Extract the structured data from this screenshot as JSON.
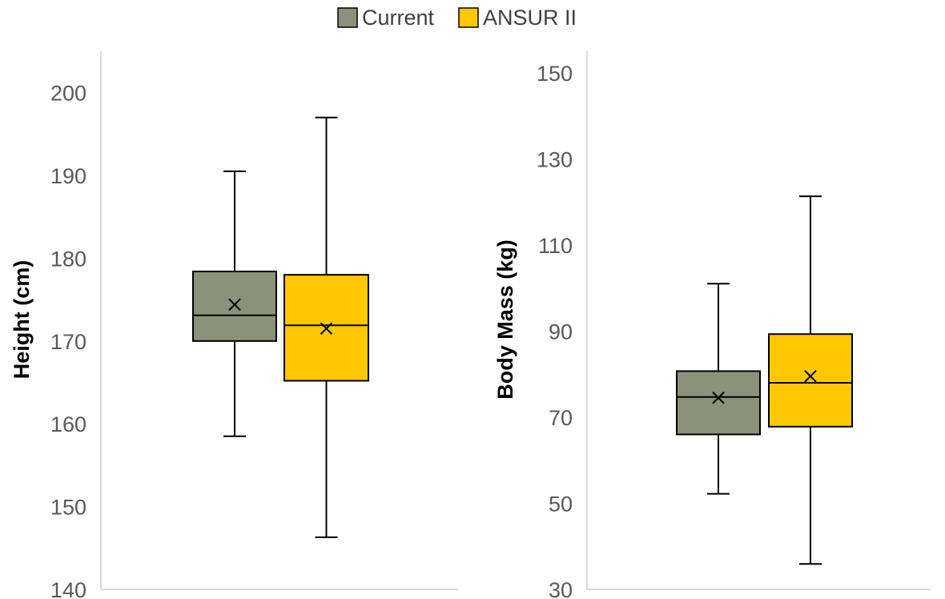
{
  "legend": [
    {
      "label": "Current",
      "color": "#8b917a"
    },
    {
      "label": "ANSUR II",
      "color": "#ffc800"
    }
  ],
  "chart_data": [
    {
      "type": "boxplot",
      "title": "",
      "xlabel": "",
      "ylabel": "Height (cm)",
      "ylim": [
        140,
        205
      ],
      "yticks": [
        140,
        150,
        160,
        170,
        180,
        190,
        200
      ],
      "grid": false,
      "legend_position": "top-center",
      "series": [
        {
          "name": "Current",
          "color": "#8b917a",
          "min": 158.5,
          "q1": 170.0,
          "median": 173.1,
          "q3": 178.4,
          "max": 190.5,
          "mean": 174.4
        },
        {
          "name": "ANSUR II",
          "color": "#ffc800",
          "min": 146.3,
          "q1": 165.2,
          "median": 171.9,
          "q3": 178.0,
          "max": 197.0,
          "mean": 171.5
        }
      ]
    },
    {
      "type": "boxplot",
      "title": "",
      "xlabel": "",
      "ylabel": "Body Mass (kg)",
      "ylim": [
        30,
        155
      ],
      "yticks": [
        30,
        50,
        70,
        90,
        110,
        130,
        150
      ],
      "grid": false,
      "legend_position": "top-center",
      "series": [
        {
          "name": "Current",
          "color": "#8b917a",
          "min": 52.2,
          "q1": 66.0,
          "median": 74.7,
          "q3": 80.7,
          "max": 101.0,
          "mean": 74.5
        },
        {
          "name": "ANSUR II",
          "color": "#ffc800",
          "min": 35.9,
          "q1": 67.8,
          "median": 78.0,
          "q3": 89.3,
          "max": 121.3,
          "mean": 79.5
        }
      ]
    }
  ]
}
